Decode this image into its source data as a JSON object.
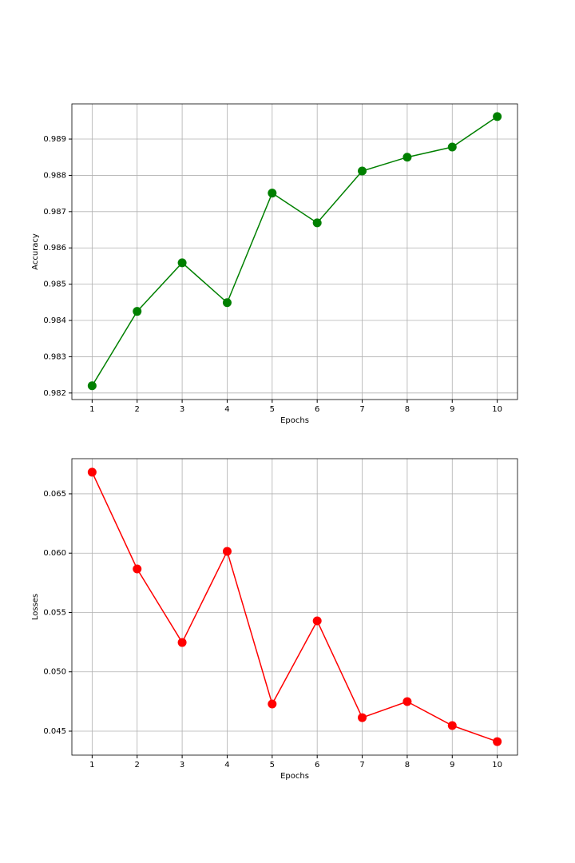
{
  "chart_data": [
    {
      "type": "line",
      "xlabel": "Epochs",
      "ylabel": "Accuracy",
      "x": [
        1,
        2,
        3,
        4,
        5,
        6,
        7,
        8,
        9,
        10
      ],
      "values": [
        0.9822,
        0.98425,
        0.98559,
        0.98449,
        0.98751,
        0.98669,
        0.98812,
        0.9885,
        0.98878,
        0.98962
      ],
      "color": "#008000",
      "xlim": [
        0.55,
        10.45
      ],
      "xticks": [
        1,
        2,
        3,
        4,
        5,
        6,
        7,
        8,
        9,
        10
      ],
      "ylim": [
        0.98182,
        0.98997
      ],
      "yticks": [
        0.982,
        0.983,
        0.984,
        0.985,
        0.986,
        0.987,
        0.988,
        0.989
      ],
      "grid": true
    },
    {
      "type": "line",
      "xlabel": "Epochs",
      "ylabel": "Losses",
      "x": [
        1,
        2,
        3,
        4,
        5,
        6,
        7,
        8,
        9,
        10
      ],
      "values": [
        0.06682,
        0.05867,
        0.05247,
        0.06015,
        0.04729,
        0.05429,
        0.04614,
        0.04749,
        0.04547,
        0.04412
      ],
      "color": "#ff0000",
      "xlim": [
        0.55,
        10.45
      ],
      "xticks": [
        1,
        2,
        3,
        4,
        5,
        6,
        7,
        8,
        9,
        10
      ],
      "ylim": [
        0.04298,
        0.06796
      ],
      "yticks": [
        0.045,
        {
          "value": 0.05,
          "label": "0.050"
        },
        0.055,
        {
          "value": 0.06,
          "label": "0.060"
        },
        0.065
      ],
      "grid": true
    }
  ]
}
